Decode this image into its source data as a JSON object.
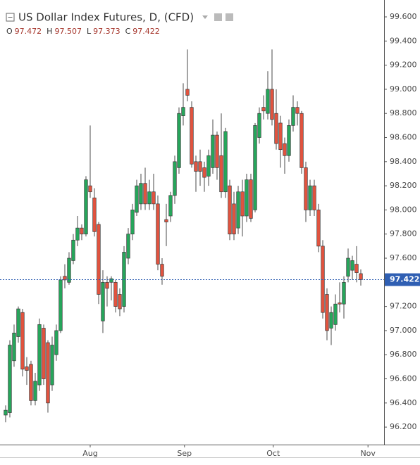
{
  "chart_data": {
    "type": "candlestick",
    "title": "US Dollar Index Futures, D, (CFD)",
    "ohlc_header": [
      {
        "label": "O",
        "value": 97.472
      },
      {
        "label": "H",
        "value": 97.507
      },
      {
        "label": "L",
        "value": 97.373
      },
      {
        "label": "C",
        "value": 97.422
      }
    ],
    "last_price": 97.422,
    "up_color": "#26a65b",
    "down_color": "#e2533f",
    "price_line_color": "#2f5fb3",
    "xlim": [
      -1.33,
      89.5
    ],
    "xticks": [
      {
        "value": 20,
        "label": "Aug"
      },
      {
        "value": 42.3,
        "label": "Sep"
      },
      {
        "value": 63.3,
        "label": "Oct"
      },
      {
        "value": 85.7,
        "label": "Nov"
      }
    ],
    "ylim": [
      96.055,
      99.74
    ],
    "yticks": [
      {
        "value": 96.2,
        "label": "96.200"
      },
      {
        "value": 96.4,
        "label": "96.400"
      },
      {
        "value": 96.6,
        "label": "96.600"
      },
      {
        "value": 96.8,
        "label": "96.800"
      },
      {
        "value": 97.0,
        "label": "97.000"
      },
      {
        "value": 97.2,
        "label": "97.200"
      },
      {
        "value": 97.4,
        "label": "97.400"
      },
      {
        "value": 97.6,
        "label": "97.600"
      },
      {
        "value": 97.8,
        "label": "97.800"
      },
      {
        "value": 98.0,
        "label": "98.000"
      },
      {
        "value": 98.2,
        "label": "98.200"
      },
      {
        "value": 98.4,
        "label": "98.400"
      },
      {
        "value": 98.6,
        "label": "98.600"
      },
      {
        "value": 98.8,
        "label": "98.800"
      },
      {
        "value": 99.0,
        "label": "99.000"
      },
      {
        "value": 99.2,
        "label": "99.200"
      },
      {
        "value": 99.4,
        "label": "99.400"
      },
      {
        "value": 99.6,
        "label": "99.600"
      }
    ],
    "open": [
      96.3,
      96.32,
      96.75,
      96.95,
      97.15,
      96.7,
      96.72,
      96.42,
      96.55,
      97.02,
      96.9,
      96.55,
      96.8,
      97.0,
      97.45,
      97.4,
      97.58,
      97.75,
      97.85,
      97.8,
      98.2,
      98.1,
      97.88,
      97.08,
      97.4,
      97.4,
      97.4,
      97.3,
      97.2,
      97.6,
      97.8,
      97.98,
      98.05,
      98.22,
      98.05,
      98.15,
      98.05,
      97.55,
      97.92,
      97.95,
      98.12,
      98.35,
      98.78,
      99.0,
      98.85,
      98.4,
      98.4,
      98.35,
      98.28,
      98.35,
      98.62,
      98.45,
      98.15,
      98.2,
      98.05,
      97.85,
      98.15,
      97.95,
      98.25,
      98.0,
      98.6,
      98.85,
      98.8,
      99.0,
      98.8,
      98.72,
      98.55,
      98.45,
      98.7,
      98.85,
      98.8,
      98.35,
      98.0,
      98.2,
      98.0,
      97.7,
      97.3,
      97.02,
      97.05,
      97.23,
      97.22,
      97.45,
      97.5,
      97.55,
      97.472
    ],
    "high": [
      96.38,
      96.92,
      97.05,
      97.2,
      97.18,
      96.78,
      96.75,
      96.65,
      97.1,
      97.05,
      96.92,
      96.95,
      97.05,
      97.45,
      97.55,
      97.65,
      97.8,
      97.95,
      97.88,
      98.28,
      98.7,
      98.18,
      97.9,
      97.5,
      97.45,
      97.45,
      97.42,
      97.35,
      97.7,
      97.85,
      98.05,
      98.25,
      98.3,
      98.35,
      98.25,
      98.3,
      98.12,
      97.6,
      98.05,
      98.15,
      98.45,
      98.85,
      99.05,
      99.33,
      98.9,
      98.45,
      98.5,
      98.4,
      98.5,
      98.75,
      98.65,
      98.8,
      98.68,
      98.25,
      98.15,
      98.2,
      98.25,
      98.3,
      98.3,
      98.72,
      98.85,
      98.95,
      99.15,
      99.33,
      99.0,
      98.78,
      98.6,
      98.75,
      98.95,
      98.9,
      98.82,
      98.4,
      98.25,
      98.25,
      98.05,
      97.75,
      97.35,
      97.2,
      97.3,
      97.4,
      97.45,
      97.68,
      97.62,
      97.7,
      97.507
    ],
    "low": [
      96.24,
      96.28,
      96.7,
      96.9,
      96.62,
      96.55,
      96.38,
      96.38,
      96.5,
      96.55,
      96.32,
      96.5,
      96.75,
      96.98,
      97.35,
      97.38,
      97.55,
      97.7,
      97.75,
      97.78,
      98.1,
      97.78,
      97.22,
      96.98,
      97.2,
      97.25,
      97.15,
      97.12,
      97.15,
      97.55,
      97.75,
      97.95,
      98.0,
      98.0,
      98.0,
      98.0,
      97.5,
      97.38,
      97.7,
      97.9,
      98.05,
      98.3,
      98.7,
      98.9,
      98.35,
      98.15,
      98.2,
      98.15,
      98.2,
      98.3,
      98.25,
      98.1,
      98.1,
      97.75,
      97.75,
      97.8,
      97.78,
      97.9,
      97.9,
      97.98,
      98.55,
      98.75,
      98.75,
      98.7,
      98.5,
      98.35,
      98.3,
      98.4,
      98.65,
      98.7,
      98.3,
      97.9,
      97.95,
      97.95,
      97.65,
      97.1,
      96.92,
      96.88,
      97.0,
      97.15,
      97.1,
      97.4,
      97.42,
      97.4,
      97.373
    ],
    "close": [
      96.34,
      96.88,
      96.98,
      97.18,
      96.68,
      96.67,
      96.42,
      96.58,
      97.05,
      96.6,
      96.4,
      96.88,
      97.0,
      97.42,
      97.42,
      97.6,
      97.75,
      97.85,
      97.8,
      98.25,
      98.15,
      97.82,
      97.3,
      97.4,
      97.35,
      97.43,
      97.2,
      97.18,
      97.65,
      97.8,
      98.0,
      98.2,
      98.22,
      98.05,
      98.15,
      98.05,
      97.55,
      97.45,
      97.9,
      98.12,
      98.4,
      98.8,
      98.85,
      98.95,
      98.38,
      98.32,
      98.32,
      98.27,
      98.45,
      98.62,
      98.35,
      98.15,
      98.65,
      97.8,
      97.8,
      98.15,
      97.95,
      98.25,
      97.93,
      98.7,
      98.8,
      98.82,
      99.0,
      98.75,
      98.55,
      98.5,
      98.45,
      98.7,
      98.85,
      98.8,
      98.35,
      98.0,
      98.2,
      98.0,
      97.7,
      97.15,
      97.0,
      97.15,
      97.22,
      97.22,
      97.4,
      97.6,
      97.58,
      97.48,
      97.422
    ]
  }
}
